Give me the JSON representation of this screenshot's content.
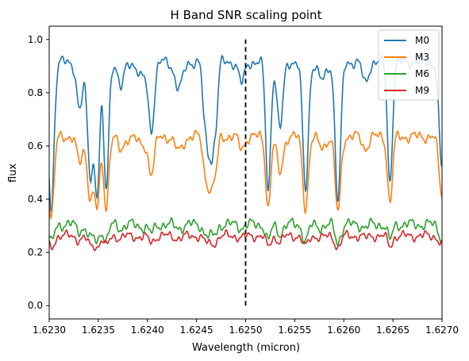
{
  "chart_data": {
    "type": "line",
    "title": "H Band SNR scaling point",
    "xlabel": "Wavelength (micron)",
    "ylabel": "flux",
    "xlim": [
      1.623,
      1.627
    ],
    "ylim": [
      -0.05,
      1.05
    ],
    "x_ticks": [
      "1.6230",
      "1.6235",
      "1.6240",
      "1.6245",
      "1.6250",
      "1.6255",
      "1.6260",
      "1.6265",
      "1.6270"
    ],
    "y_ticks": [
      "0.0",
      "0.2",
      "0.4",
      "0.6",
      "0.8",
      "1.0"
    ],
    "grid": false,
    "legend_position": "top-right",
    "vline": {
      "x": 1.625,
      "y_from": 0.0,
      "y_to": 1.0,
      "color": "#000000",
      "style": "dashed"
    },
    "absorption_lines": [
      {
        "x": 1.62302,
        "depth": 0.55,
        "width": 2.8e-05
      },
      {
        "x": 1.62331,
        "depth": 0.18,
        "width": 3e-05
      },
      {
        "x": 1.62342,
        "depth": 0.42,
        "width": 3e-05
      },
      {
        "x": 1.62349,
        "depth": 0.47,
        "width": 2.5e-05
      },
      {
        "x": 1.62358,
        "depth": 0.48,
        "width": 2.5e-05
      },
      {
        "x": 1.62373,
        "depth": 0.1,
        "width": 3e-05
      },
      {
        "x": 1.62394,
        "depth": 0.06,
        "width": 4e-05
      },
      {
        "x": 1.62404,
        "depth": 0.25,
        "width": 3e-05
      },
      {
        "x": 1.62432,
        "depth": 0.1,
        "width": 4e-05
      },
      {
        "x": 1.62458,
        "depth": 0.2,
        "width": 2e-05
      },
      {
        "x": 1.62462,
        "depth": 0.28,
        "width": 2e-05
      },
      {
        "x": 1.62466,
        "depth": 0.3,
        "width": 2e-05
      },
      {
        "x": 1.6247,
        "depth": 0.2,
        "width": 2e-05
      },
      {
        "x": 1.62496,
        "depth": 0.08,
        "width": 3e-05
      },
      {
        "x": 1.62523,
        "depth": 0.48,
        "width": 2.5e-05
      },
      {
        "x": 1.62535,
        "depth": 0.25,
        "width": 3e-05
      },
      {
        "x": 1.62561,
        "depth": 0.48,
        "width": 2.8e-05
      },
      {
        "x": 1.62578,
        "depth": 0.07,
        "width": 4e-05
      },
      {
        "x": 1.62594,
        "depth": 0.52,
        "width": 2.8e-05
      },
      {
        "x": 1.62622,
        "depth": 0.08,
        "width": 3e-05
      },
      {
        "x": 1.62647,
        "depth": 0.45,
        "width": 2.5e-05
      },
      {
        "x": 1.627,
        "depth": 0.4,
        "width": 3e-05
      }
    ],
    "series": [
      {
        "name": "M0",
        "color": "#1f77b4",
        "continuum": 0.915,
        "ripple": 0.012,
        "line_scale": 1.0
      },
      {
        "name": "M3",
        "color": "#ff7f0e",
        "continuum": 0.635,
        "ripple": 0.012,
        "line_scale": 0.55
      },
      {
        "name": "M6",
        "color": "#2ca02c",
        "continuum": 0.305,
        "ripple": 0.012,
        "line_scale": 0.13
      },
      {
        "name": "M9",
        "color": "#d62728",
        "continuum": 0.262,
        "ripple": 0.01,
        "line_scale": 0.085
      }
    ]
  }
}
